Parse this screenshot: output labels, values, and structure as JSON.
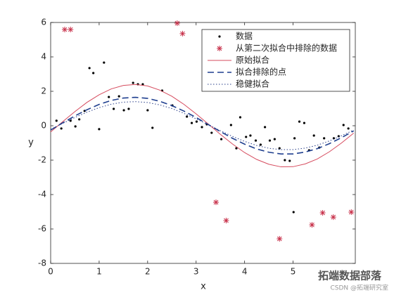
{
  "chart_data": {
    "type": "scatter-line",
    "xlabel": "x",
    "ylabel": "y",
    "xlim": [
      0,
      6.2832
    ],
    "ylim": [
      -8,
      6
    ],
    "xticks": [
      0,
      1,
      2,
      3,
      4,
      5
    ],
    "yticks": [
      -8,
      -6,
      -4,
      -2,
      0,
      2,
      4,
      6
    ],
    "legend": "top-right",
    "series": [
      {
        "name": "数据",
        "style": "dot",
        "color": "#000000",
        "x": [
          0.12,
          0.22,
          0.41,
          0.51,
          0.59,
          0.7,
          0.8,
          0.88,
          1.0,
          1.1,
          1.2,
          1.3,
          1.41,
          1.51,
          1.61,
          1.7,
          1.8,
          1.9,
          2.0,
          2.1,
          2.3,
          2.51,
          2.81,
          2.91,
          3.01,
          3.12,
          3.22,
          3.32,
          3.52,
          3.72,
          3.83,
          3.91,
          4.03,
          4.12,
          4.23,
          4.33,
          4.42,
          4.52,
          4.62,
          4.72,
          4.83,
          4.93,
          5.03,
          5.13,
          5.23,
          5.33,
          5.43,
          5.54,
          5.64,
          5.84,
          5.94,
          6.04,
          6.14,
          5.01
        ],
        "values": [
          0.29,
          -0.16,
          0.29,
          -0.04,
          0.37,
          0.86,
          3.35,
          3.06,
          -0.2,
          3.67,
          1.67,
          0.98,
          1.71,
          0.9,
          0.98,
          2.49,
          2.41,
          2.41,
          0.9,
          -0.12,
          2.04,
          1.18,
          0.53,
          0.16,
          0.24,
          -0.08,
          0.08,
          -0.41,
          -0.78,
          0.04,
          -1.31,
          0.49,
          -0.65,
          -0.57,
          -0.86,
          -1.1,
          -0.08,
          -0.86,
          -0.78,
          -1.31,
          -2.0,
          -2.04,
          -0.73,
          0.24,
          0.16,
          -1.43,
          -0.57,
          -1.27,
          -0.73,
          -0.73,
          -0.61,
          0.04,
          -0.16,
          -5.02
        ]
      },
      {
        "name": "从第二次拟合中排除的数据",
        "style": "star",
        "color": "#c8324b",
        "x": [
          0.29,
          0.41,
          2.61,
          2.72,
          3.41,
          3.62,
          4.72,
          5.39,
          5.61,
          5.83,
          6.2
        ],
        "values": [
          5.59,
          5.59,
          5.96,
          5.35,
          -4.45,
          -5.51,
          -6.57,
          -5.76,
          -5.06,
          -5.31,
          -5.02
        ]
      },
      {
        "name": "原始拟合",
        "style": "solid",
        "color": "#d64b5e",
        "x": [
          0,
          0.25,
          0.5,
          0.75,
          1,
          1.25,
          1.5,
          1.75,
          2,
          2.25,
          2.5,
          2.75,
          3,
          3.25,
          3.5,
          3.75,
          4,
          4.25,
          4.5,
          4.75,
          5,
          5.25,
          5.5,
          5.75,
          6,
          6.25
        ],
        "values": [
          -0.36,
          0.24,
          0.82,
          1.36,
          1.8,
          2.14,
          2.34,
          2.4,
          2.31,
          2.07,
          1.71,
          1.24,
          0.69,
          0.1,
          -0.5,
          -1.06,
          -1.56,
          -1.96,
          -2.24,
          -2.39,
          -2.38,
          -2.22,
          -1.93,
          -1.51,
          -1.0,
          -0.43
        ]
      },
      {
        "name": "拟合排除的点",
        "style": "dashed",
        "color": "#1f3f8f",
        "x": [
          0,
          0.25,
          0.5,
          0.75,
          1,
          1.25,
          1.5,
          1.75,
          2,
          2.25,
          2.5,
          2.75,
          3,
          3.25,
          3.5,
          3.75,
          4,
          4.25,
          4.5,
          4.75,
          5,
          5.25,
          5.5,
          5.75,
          6,
          6.25
        ],
        "values": [
          -0.25,
          0.17,
          0.57,
          0.93,
          1.24,
          1.47,
          1.61,
          1.65,
          1.59,
          1.42,
          1.17,
          0.85,
          0.48,
          0.07,
          -0.34,
          -0.73,
          -1.07,
          -1.35,
          -1.54,
          -1.64,
          -1.64,
          -1.53,
          -1.33,
          -1.04,
          -0.69,
          -0.3
        ]
      },
      {
        "name": "稳健拟合",
        "style": "dotted",
        "color": "#2a3f8a",
        "x": [
          0,
          0.25,
          0.5,
          0.75,
          1,
          1.25,
          1.5,
          1.75,
          2,
          2.25,
          2.5,
          2.75,
          3,
          3.25,
          3.5,
          3.75,
          4,
          4.25,
          4.5,
          4.75,
          5,
          5.25,
          5.5,
          5.75,
          6,
          6.25
        ],
        "values": [
          -0.21,
          0.14,
          0.48,
          0.79,
          1.05,
          1.25,
          1.37,
          1.4,
          1.35,
          1.21,
          1.0,
          0.72,
          0.4,
          0.06,
          -0.29,
          -0.62,
          -0.91,
          -1.15,
          -1.31,
          -1.39,
          -1.39,
          -1.3,
          -1.13,
          -0.88,
          -0.58,
          -0.25
        ]
      }
    ],
    "watermark": [
      "拓端数据部落",
      "CSDN @拓端研究室"
    ]
  }
}
